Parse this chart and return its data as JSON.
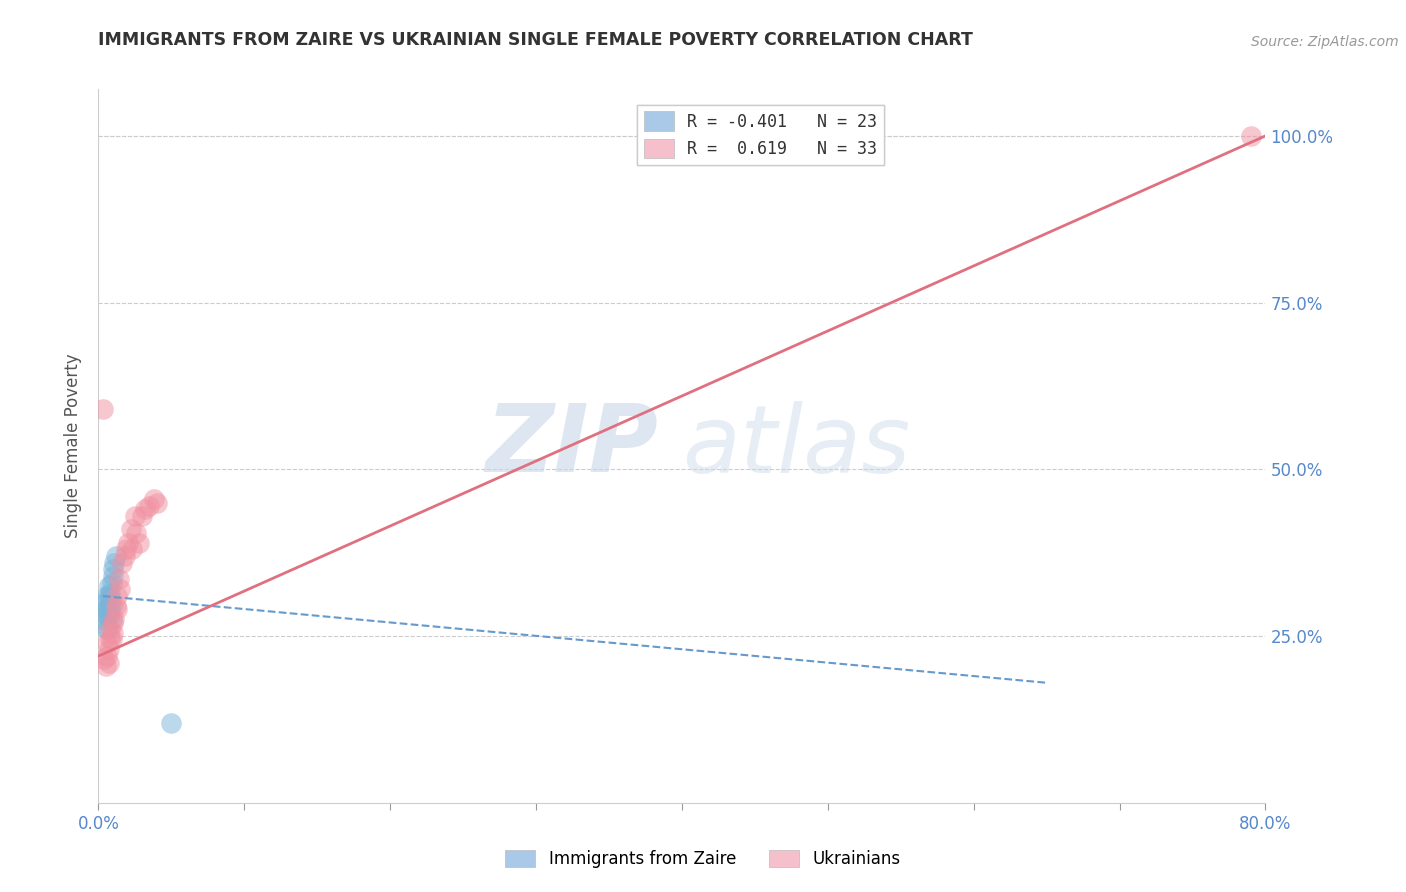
{
  "title": "IMMIGRANTS FROM ZAIRE VS UKRAINIAN SINGLE FEMALE POVERTY CORRELATION CHART",
  "source": "Source: ZipAtlas.com",
  "ylabel": "Single Female Poverty",
  "xlim": [
    0.0,
    0.8
  ],
  "ylim": [
    0.0,
    1.07
  ],
  "x_ticks": [
    0.0,
    0.1,
    0.2,
    0.3,
    0.4,
    0.5,
    0.6,
    0.7,
    0.8
  ],
  "x_tick_labels_show": [
    "0.0%",
    "",
    "",
    "",
    "",
    "",
    "",
    "",
    "80.0%"
  ],
  "y_ticks": [
    0.25,
    0.5,
    0.75,
    1.0
  ],
  "y_tick_labels": [
    "25.0%",
    "50.0%",
    "75.0%",
    "100.0%"
  ],
  "legend_r_entries": [
    {
      "label_r": "R = -0.401",
      "label_n": "N = 23",
      "color": "#aac8e8"
    },
    {
      "label_r": "R =  0.619",
      "label_n": "N = 33",
      "color": "#f5c0cc"
    }
  ],
  "watermark_zip": "ZIP",
  "watermark_atlas": "atlas",
  "series": [
    {
      "name": "Immigrants from Zaire",
      "color": "#7ab4d8",
      "edge_color": "none",
      "alpha": 0.5,
      "s": 220,
      "x": [
        0.003,
        0.004,
        0.004,
        0.005,
        0.005,
        0.006,
        0.006,
        0.007,
        0.007,
        0.007,
        0.007,
        0.008,
        0.008,
        0.008,
        0.009,
        0.009,
        0.009,
        0.01,
        0.01,
        0.011,
        0.012,
        0.006,
        0.05
      ],
      "y": [
        0.285,
        0.275,
        0.3,
        0.29,
        0.31,
        0.28,
        0.26,
        0.325,
        0.28,
        0.31,
        0.295,
        0.315,
        0.29,
        0.305,
        0.33,
        0.275,
        0.295,
        0.35,
        0.34,
        0.36,
        0.37,
        0.26,
        0.12
      ],
      "trend_x": [
        0.003,
        0.65
      ],
      "trend_y": [
        0.31,
        0.18
      ],
      "trend_color": "#6699cc",
      "trend_style": "--",
      "trend_lw": 1.5
    },
    {
      "name": "Ukrainians",
      "color": "#f090a0",
      "edge_color": "none",
      "alpha": 0.5,
      "s": 220,
      "x": [
        0.004,
        0.005,
        0.006,
        0.006,
        0.007,
        0.007,
        0.008,
        0.008,
        0.009,
        0.01,
        0.01,
        0.011,
        0.012,
        0.013,
        0.013,
        0.014,
        0.015,
        0.016,
        0.018,
        0.019,
        0.02,
        0.022,
        0.023,
        0.025,
        0.026,
        0.028,
        0.03,
        0.032,
        0.035,
        0.038,
        0.04,
        0.003,
        0.79
      ],
      "y": [
        0.215,
        0.205,
        0.22,
        0.24,
        0.21,
        0.23,
        0.245,
        0.26,
        0.245,
        0.255,
        0.27,
        0.275,
        0.295,
        0.31,
        0.29,
        0.335,
        0.32,
        0.36,
        0.37,
        0.38,
        0.39,
        0.41,
        0.38,
        0.43,
        0.405,
        0.39,
        0.43,
        0.44,
        0.445,
        0.455,
        0.45,
        0.59,
        1.0
      ],
      "trend_x": [
        0.0,
        0.8
      ],
      "trend_y": [
        0.22,
        1.0
      ],
      "trend_color": "#e07080",
      "trend_style": "-",
      "trend_lw": 2.0
    }
  ]
}
